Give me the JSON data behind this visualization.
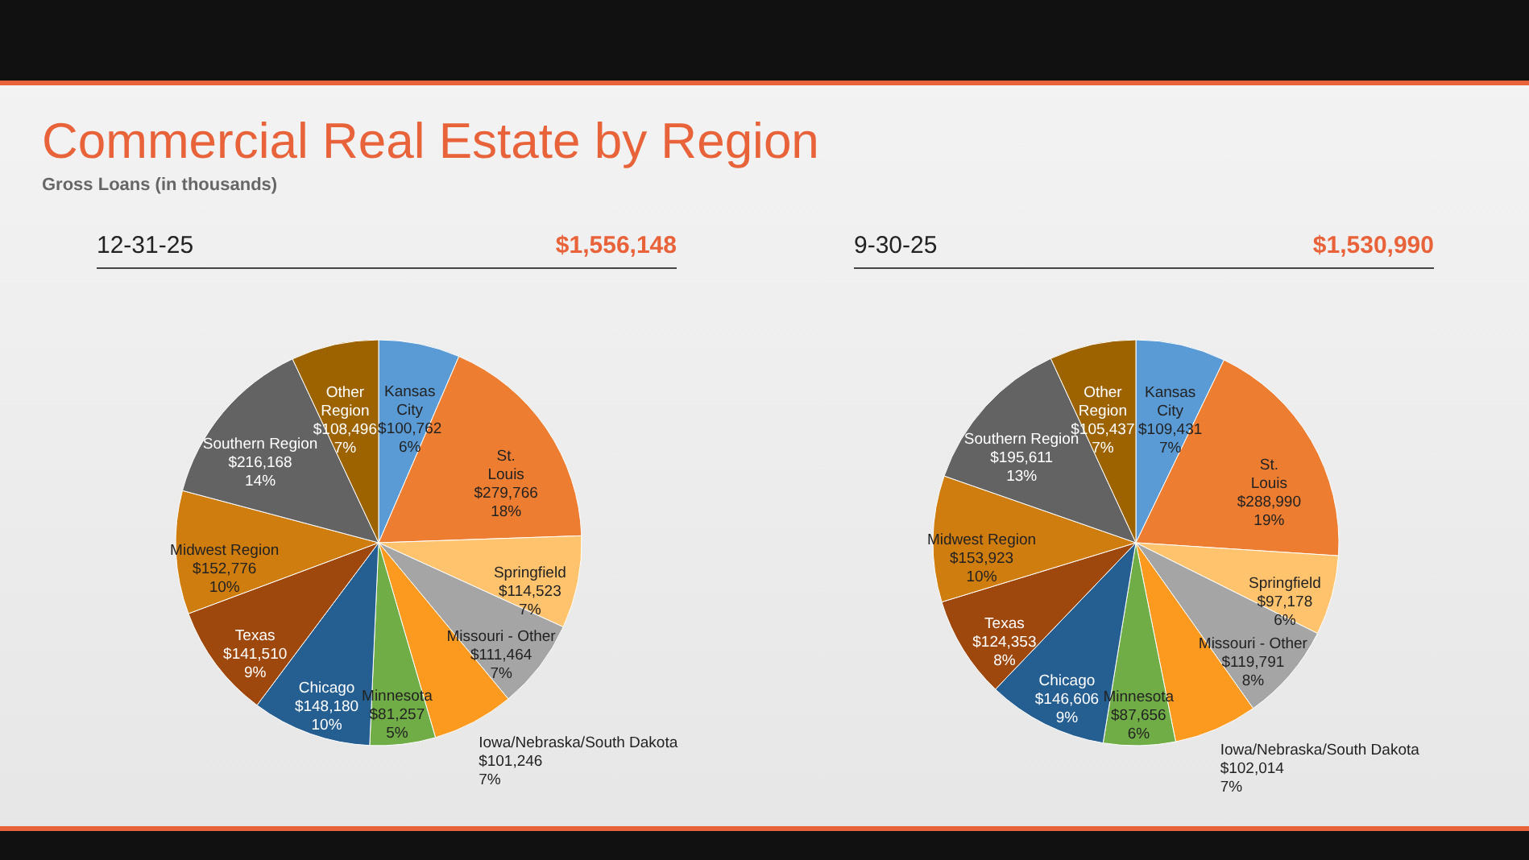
{
  "chart_data": [
    {
      "type": "pie",
      "title": "Commercial Real Estate by Region",
      "subtitle": "Gross Loans (in thousands)",
      "annotations": [
        "12-31-25",
        "$1,556,148"
      ],
      "categories": [
        "Kansas City",
        "St. Louis",
        "Springfield",
        "Missouri - Other",
        "Iowa/Nebraska/South Dakota",
        "Minnesota",
        "Chicago",
        "Texas",
        "Midwest Region",
        "Southern Region",
        "Other Region"
      ],
      "values": [
        100762,
        279766,
        114523,
        111464,
        101246,
        81257,
        148180,
        141510,
        152776,
        216168,
        108496
      ],
      "value_labels": [
        "$100,762\n6%",
        "$279,766\n18%",
        "$114,523\n7%",
        "$111,464\n7%",
        "$101,246\n7%",
        "$81,257\n5%",
        "$148,180\n10%",
        "$141,510\n9%",
        "$152,776\n10%",
        "$216,168\n14%",
        "$108,496\n7%"
      ],
      "colors": [
        "#5b9bd5",
        "#ed7d31",
        "#ffc36e",
        "#a5a5a5",
        "#fb9a1f",
        "#70ad47",
        "#255e91",
        "#9e480e",
        "#d07d10",
        "#636363",
        "#9c6300"
      ]
    },
    {
      "type": "pie",
      "annotations": [
        "9-30-25",
        "$1,530,990"
      ],
      "categories": [
        "Kansas City",
        "St. Louis",
        "Springfield",
        "Missouri - Other",
        "Iowa/Nebraska/South Dakota",
        "Minnesota",
        "Chicago",
        "Texas",
        "Midwest Region",
        "Southern Region",
        "Other Region"
      ],
      "values": [
        109431,
        288990,
        97178,
        119791,
        102014,
        87656,
        146606,
        124353,
        153923,
        195611,
        105437
      ],
      "value_labels": [
        "$109,431\n7%",
        "$288,990\n19%",
        "$97,178\n6%",
        "$119,791\n8%",
        "$102,014\n7%",
        "$87,656\n6%",
        "$146,606\n9%",
        "$124,353\n8%",
        "$153,923\n10%",
        "$195,611\n13%",
        "$105,437\n7%"
      ],
      "colors": [
        "#5b9bd5",
        "#ed7d31",
        "#ffc36e",
        "#a5a5a5",
        "#fb9a1f",
        "#70ad47",
        "#255e91",
        "#9e480e",
        "#d07d10",
        "#636363",
        "#9c6300"
      ]
    }
  ]
}
